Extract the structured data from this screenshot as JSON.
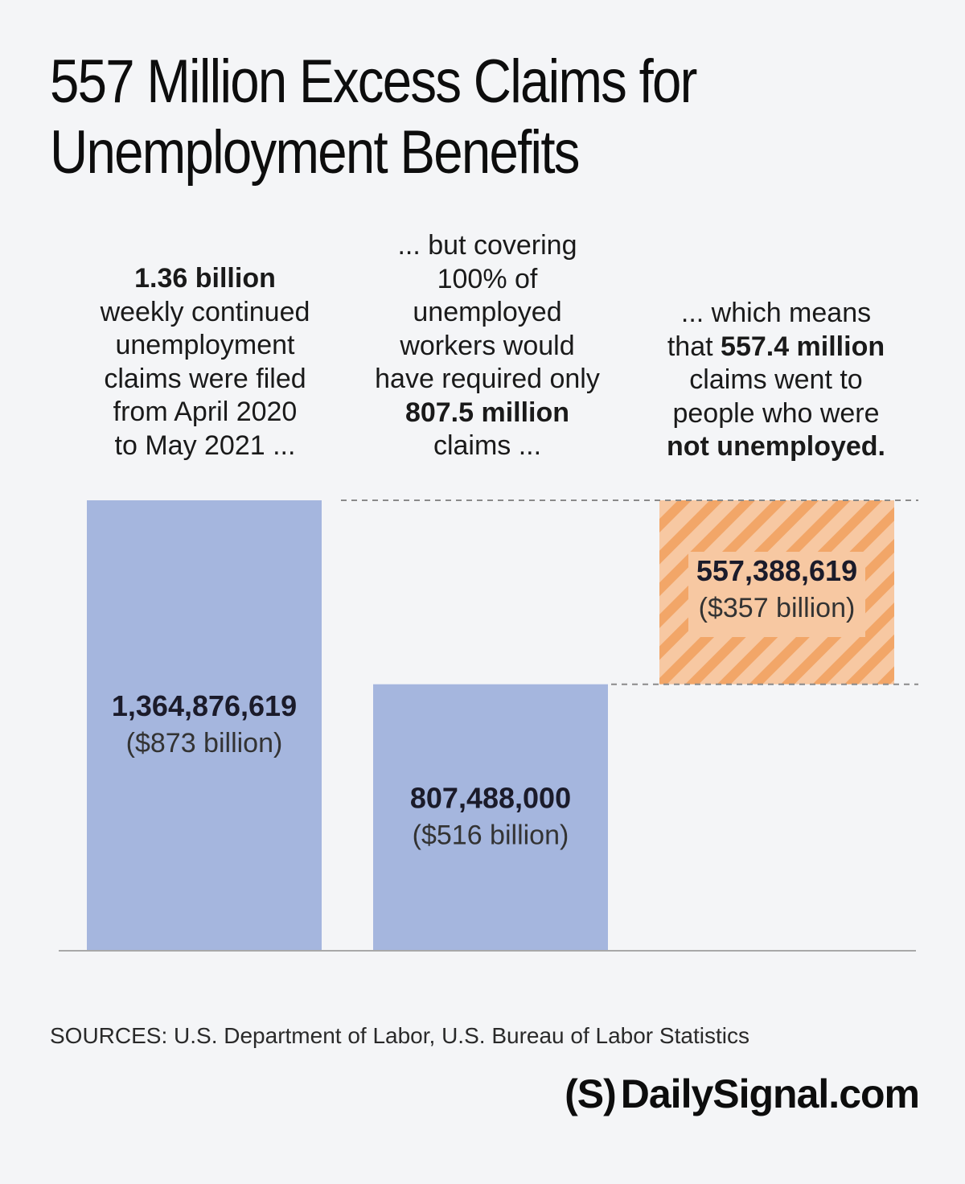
{
  "title_line1": "557 Million Excess Claims for",
  "title_line2": "Unemployment Benefits",
  "notes": [
    {
      "segments": [
        {
          "text": "1.36 billion",
          "bold": true,
          "br": true
        },
        {
          "text": "weekly continued",
          "br": true
        },
        {
          "text": "unemployment",
          "br": true
        },
        {
          "text": "claims were filed",
          "br": true
        },
        {
          "text": "from April 2020",
          "br": true
        },
        {
          "text": "to May 2021 ..."
        }
      ]
    },
    {
      "segments": [
        {
          "text": "... but covering",
          "br": true
        },
        {
          "text": "100% of",
          "br": true
        },
        {
          "text": "unemployed",
          "br": true
        },
        {
          "text": "workers would",
          "br": true
        },
        {
          "text": "have required only",
          "br": true
        },
        {
          "text": "807.5 million",
          "bold": true,
          "br": true
        },
        {
          "text": "claims ..."
        }
      ]
    },
    {
      "segments": [
        {
          "text": "... which means",
          "br": true
        },
        {
          "text": "that "
        },
        {
          "text": "557.4 million",
          "bold": true,
          "br": true
        },
        {
          "text": "claims went to",
          "br": true
        },
        {
          "text": "people who were",
          "br": true
        },
        {
          "text": "not unemployed.",
          "bold": true
        }
      ]
    }
  ],
  "chart_data": {
    "type": "bar",
    "subtype": "waterfall",
    "categories": [
      "",
      "",
      ""
    ],
    "bars": [
      {
        "value": 1364876619,
        "base": 0,
        "label": "1,364,876,619",
        "sublabel": "($873 billion)",
        "color": "#a5b6de",
        "pattern": "solid"
      },
      {
        "value": 807488000,
        "base": 0,
        "label": "807,488,000",
        "sublabel": "($516 billion)",
        "color": "#a5b6de",
        "pattern": "solid"
      },
      {
        "value": 557388619,
        "base": 807488000,
        "label": "557,388,619",
        "sublabel": "($357 billion)",
        "color": "#f7c8a2",
        "stripe_color": "#f2a668",
        "pattern": "diagonal-stripes"
      }
    ],
    "ylim": [
      0,
      1364876619
    ],
    "grid": false,
    "reference_lines": [
      {
        "value": 1364876619,
        "style": "dashed"
      },
      {
        "value": 807488000,
        "style": "dashed"
      }
    ],
    "title": "557 Million Excess Claims for Unemployment Benefits",
    "xlabel": "",
    "ylabel": ""
  },
  "sources": "SOURCES: U.S. Department of Labor, U.S. Bureau of Labor Statistics",
  "brand": {
    "logo": "(S)",
    "name": "DailySignal.com"
  }
}
